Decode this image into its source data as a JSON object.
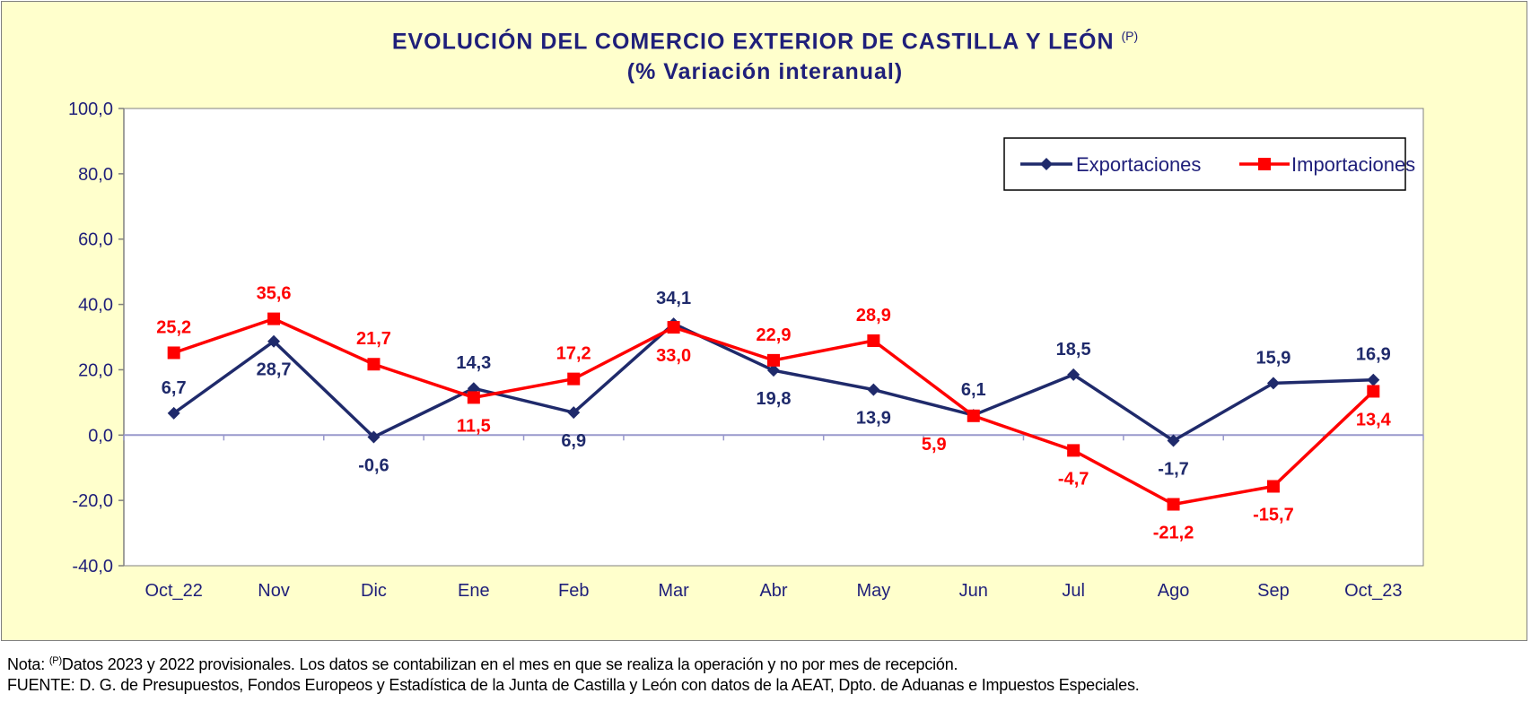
{
  "title": "EVOLUCIÓN DEL COMERCIO EXTERIOR DE CASTILLA Y LEÓN",
  "title_sup": "(P)",
  "subtitle": "(% Variación interanual)",
  "note_line1_prefix": "Nota:",
  "note_line1_sup": "(P)",
  "note_line1_text": "Datos 2023 y 2022 provisionales. Los datos se contabilizan en el mes en que se realiza la operación y no por mes de recepción.",
  "note_line2": "FUENTE: D. G. de Presupuestos, Fondos Europeos y Estadística de la Junta de Castilla y León con datos de la AEAT, Dpto. de Aduanas e Impuestos Especiales.",
  "colors": {
    "background": "#ffffcc",
    "exportaciones": "#1f2a6b",
    "importaciones": "#ff0000",
    "axis": "#808080",
    "text": "#1f1f7a"
  },
  "chart_data": {
    "type": "line",
    "categories": [
      "Oct_22",
      "Nov",
      "Dic",
      "Ene",
      "Feb",
      "Mar",
      "Abr",
      "May",
      "Jun",
      "Jul",
      "Ago",
      "Sep",
      "Oct_23"
    ],
    "series": [
      {
        "name": "Exportaciones",
        "color": "#1f2a6b",
        "marker": "diamond",
        "values": [
          6.7,
          28.7,
          -0.6,
          14.3,
          6.9,
          34.1,
          19.8,
          13.9,
          6.1,
          18.5,
          -1.7,
          15.9,
          16.9
        ],
        "labels": [
          "6,7",
          "28,7",
          "-0,6",
          "14,3",
          "6,9",
          "34,1",
          "19,8",
          "13,9",
          "6,1",
          "18,5",
          "-1,7",
          "15,9",
          "16,9"
        ],
        "label_pos": [
          "above",
          "below",
          "below",
          "above",
          "below",
          "above",
          "below",
          "below",
          "above",
          "above",
          "below",
          "above",
          "above"
        ]
      },
      {
        "name": "Importaciones",
        "color": "#ff0000",
        "marker": "square",
        "values": [
          25.2,
          35.6,
          21.7,
          11.5,
          17.2,
          33.0,
          22.9,
          28.9,
          5.9,
          -4.7,
          -21.2,
          -15.7,
          13.4
        ],
        "labels": [
          "25,2",
          "35,6",
          "21,7",
          "11,5",
          "17,2",
          "33,0",
          "22,9",
          "28,9",
          "5,9",
          "-4,7",
          "-21,2",
          "-15,7",
          "13,4"
        ],
        "label_pos": [
          "above",
          "above",
          "above",
          "below",
          "above",
          "below",
          "above",
          "above",
          "below-left",
          "below",
          "below",
          "below",
          "below"
        ]
      }
    ],
    "yticks": [
      "-40,0",
      "-20,0",
      "0,0",
      "20,0",
      "40,0",
      "60,0",
      "80,0",
      "100,0"
    ],
    "ytick_values": [
      -40,
      -20,
      0,
      20,
      40,
      60,
      80,
      100
    ],
    "ylim": [
      -40,
      100
    ],
    "grid": false,
    "legend_position": "top-right"
  }
}
